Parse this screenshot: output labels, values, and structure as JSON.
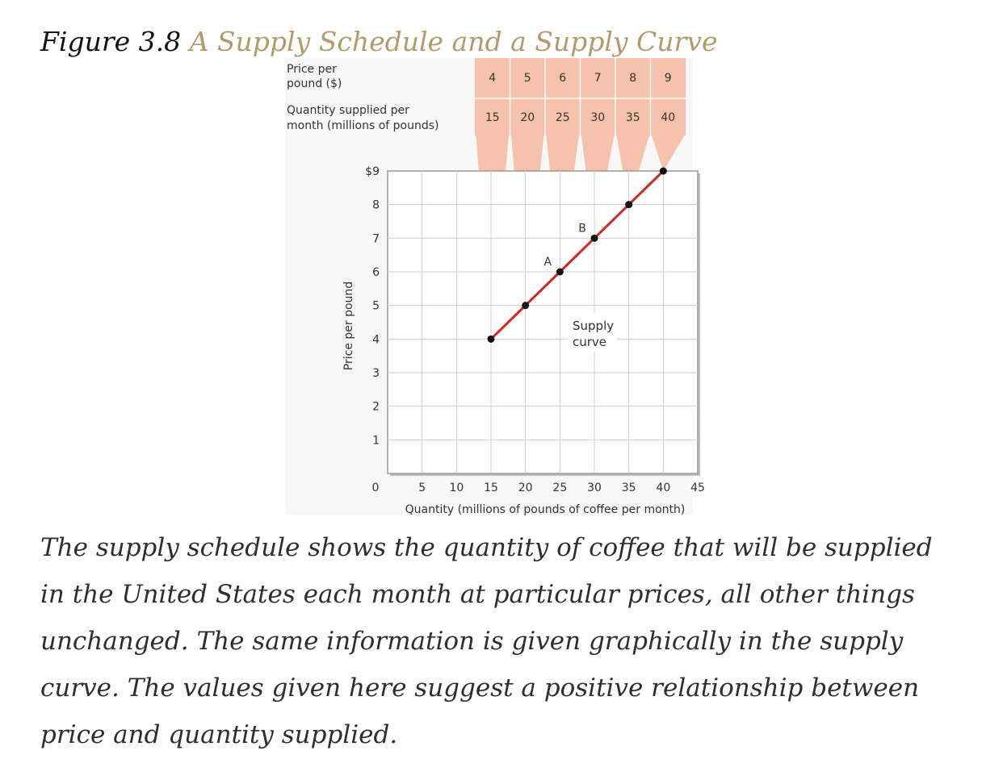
{
  "figure": {
    "number": "Figure 3.8",
    "title": "A Supply Schedule and a Supply Curve"
  },
  "schedule": {
    "price_label_line1": "Price per",
    "price_label_line2": "pound ($)",
    "quantity_label_line1": "Quantity supplied per",
    "quantity_label_line2": "month (millions of pounds)",
    "prices": [
      "4",
      "5",
      "6",
      "7",
      "8",
      "9"
    ],
    "quantities": [
      "15",
      "20",
      "25",
      "30",
      "35",
      "40"
    ]
  },
  "chart_data": {
    "type": "line",
    "x": [
      15,
      20,
      25,
      30,
      35,
      40
    ],
    "y": [
      4,
      5,
      6,
      7,
      8,
      9
    ],
    "xlim": [
      0,
      45
    ],
    "ylim": [
      0,
      9
    ],
    "x_ticks": [
      "0",
      "5",
      "10",
      "15",
      "20",
      "25",
      "30",
      "35",
      "40",
      "45"
    ],
    "y_ticks": [
      "1",
      "2",
      "3",
      "4",
      "5",
      "6",
      "7",
      "8",
      "$9"
    ],
    "xlabel": "Quantity (millions of pounds of coffee per month)",
    "ylabel": "Price per pound",
    "grid": true,
    "annotations": [
      {
        "text": "A",
        "x": 25,
        "y": 6
      },
      {
        "text": "B",
        "x": 30,
        "y": 7
      }
    ],
    "curve_label_line1": "Supply",
    "curve_label_line2": "curve",
    "colors": {
      "line": "#cc2b22",
      "funnel": "#f7c2ac",
      "grid": "#cfcfcf",
      "title_accent": "#b39a6c"
    }
  },
  "caption": "The supply schedule shows the quantity of coffee that will be supplied in the United States each month at particular prices, all other things unchanged. The same information is given graphically in the supply curve. The values given here suggest a positive relationship between price and quantity supplied."
}
